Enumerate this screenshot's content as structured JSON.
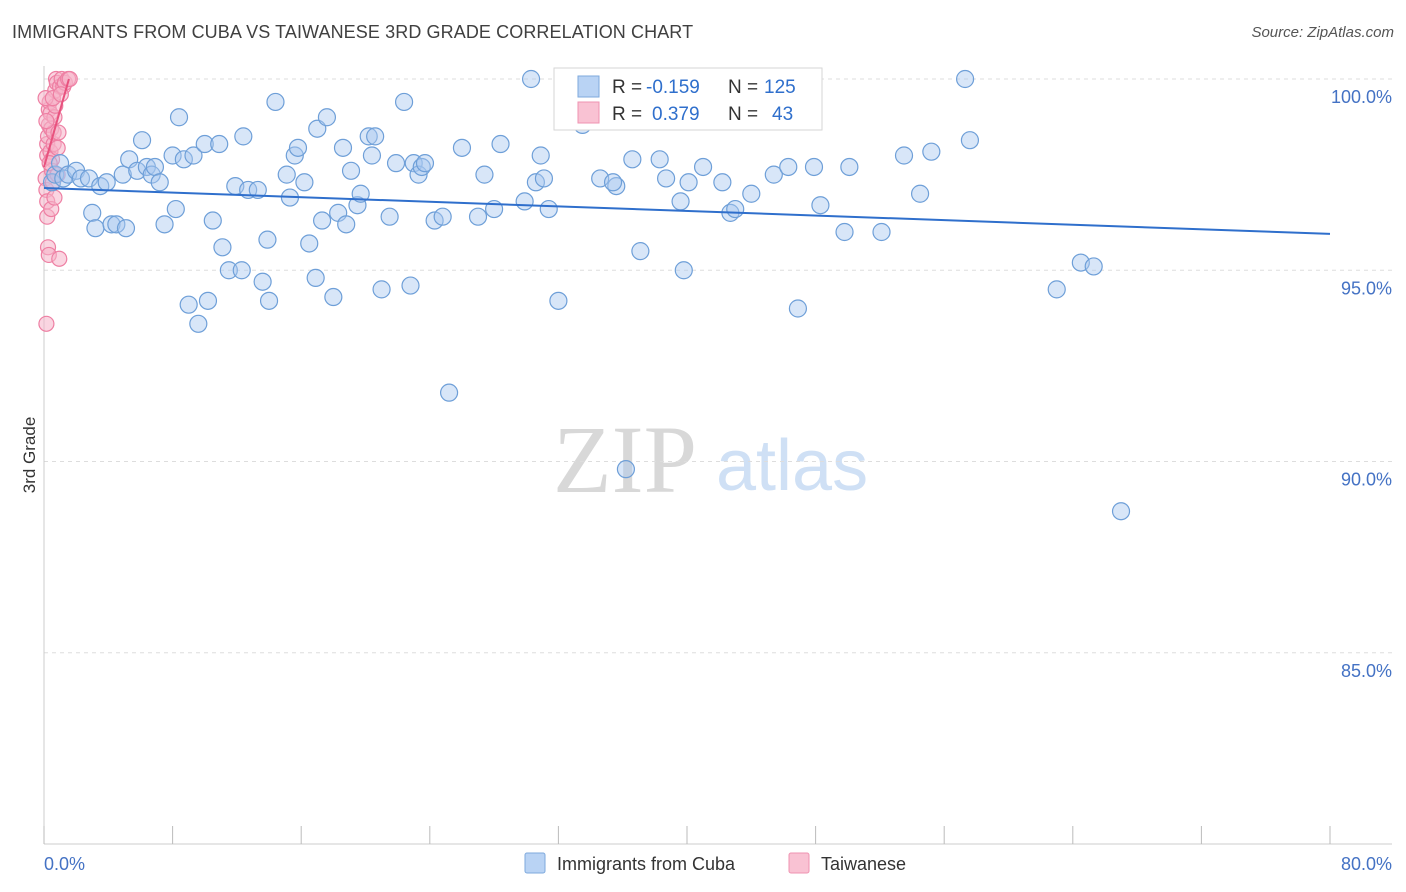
{
  "title": "IMMIGRANTS FROM CUBA VS TAIWANESE 3RD GRADE CORRELATION CHART",
  "source": "Source: ZipAtlas.com",
  "watermark": {
    "zip": "ZIP",
    "atlas": "atlas"
  },
  "colors": {
    "cuba_fill": "#a8c8f0",
    "cuba_stroke": "#6e9fd8",
    "cuba_line": "#2f6fcc",
    "taiwan_fill": "#f6b3c8",
    "taiwan_stroke": "#ee7fa3",
    "taiwan_line": "#e8527e",
    "tick_text": "#4472c4",
    "grid": "#dddddd"
  },
  "legend_box": {
    "rows": [
      {
        "r_label": "R = ",
        "r_value": "-0.159",
        "n_label": "N = ",
        "n_value": "125"
      },
      {
        "r_label": "R = ",
        "r_value": "0.379",
        "n_label": "N = ",
        "n_value": "43"
      }
    ]
  },
  "chart_data": {
    "type": "scatter",
    "title": "IMMIGRANTS FROM CUBA VS TAIWANESE 3RD GRADE CORRELATION CHART",
    "xlabel": "",
    "ylabel": "3rd Grade",
    "xlim": [
      0,
      80
    ],
    "ylim": [
      80.5,
      100.8
    ],
    "x_tick_labels": [
      "0.0%",
      "80.0%"
    ],
    "y_ticks": [
      100,
      95,
      90,
      85
    ],
    "y_tick_labels": [
      "100.0%",
      "95.0%",
      "90.0%",
      "85.0%"
    ],
    "grid": true,
    "legend_position": "bottom-center",
    "series": [
      {
        "name": "Immigrants from Cuba",
        "R": -0.159,
        "N": 125,
        "trend": {
          "x0": 0.0,
          "y0": 97.15,
          "x1": 80.0,
          "y1": 95.95
        },
        "points": [
          [
            0.5,
            97.3
          ],
          [
            0.7,
            97.5
          ],
          [
            1.0,
            97.8
          ],
          [
            1.2,
            97.4
          ],
          [
            1.5,
            97.5
          ],
          [
            2.0,
            97.6
          ],
          [
            2.3,
            97.4
          ],
          [
            2.8,
            97.4
          ],
          [
            3.0,
            96.5
          ],
          [
            3.2,
            96.1
          ],
          [
            3.5,
            97.2
          ],
          [
            3.9,
            97.3
          ],
          [
            4.2,
            96.2
          ],
          [
            4.5,
            96.2
          ],
          [
            4.9,
            97.5
          ],
          [
            5.1,
            96.1
          ],
          [
            5.3,
            97.9
          ],
          [
            5.8,
            97.6
          ],
          [
            6.1,
            98.4
          ],
          [
            6.4,
            97.7
          ],
          [
            6.7,
            97.5
          ],
          [
            6.9,
            97.7
          ],
          [
            7.2,
            97.3
          ],
          [
            7.5,
            96.2
          ],
          [
            8.0,
            98.0
          ],
          [
            8.2,
            96.6
          ],
          [
            8.4,
            99.0
          ],
          [
            8.7,
            97.9
          ],
          [
            9.0,
            94.1
          ],
          [
            9.3,
            98.0
          ],
          [
            9.6,
            93.6
          ],
          [
            10.0,
            98.3
          ],
          [
            10.2,
            94.2
          ],
          [
            10.5,
            96.3
          ],
          [
            10.9,
            98.3
          ],
          [
            11.1,
            95.6
          ],
          [
            11.5,
            95.0
          ],
          [
            11.9,
            97.2
          ],
          [
            12.3,
            95.0
          ],
          [
            12.4,
            98.5
          ],
          [
            12.7,
            97.1
          ],
          [
            13.3,
            97.1
          ],
          [
            13.6,
            94.7
          ],
          [
            13.9,
            95.8
          ],
          [
            14.0,
            94.2
          ],
          [
            14.4,
            99.4
          ],
          [
            15.1,
            97.5
          ],
          [
            15.3,
            96.9
          ],
          [
            15.6,
            98.0
          ],
          [
            15.8,
            98.2
          ],
          [
            16.2,
            97.3
          ],
          [
            16.5,
            95.7
          ],
          [
            16.9,
            94.8
          ],
          [
            17.0,
            98.7
          ],
          [
            17.3,
            96.3
          ],
          [
            17.6,
            99.0
          ],
          [
            18.0,
            94.3
          ],
          [
            18.3,
            96.5
          ],
          [
            18.6,
            98.2
          ],
          [
            18.8,
            96.2
          ],
          [
            19.1,
            97.6
          ],
          [
            19.5,
            96.7
          ],
          [
            19.7,
            97.0
          ],
          [
            20.2,
            98.5
          ],
          [
            20.4,
            98.0
          ],
          [
            20.6,
            98.5
          ],
          [
            21.0,
            94.5
          ],
          [
            21.5,
            96.4
          ],
          [
            21.9,
            97.8
          ],
          [
            22.4,
            99.4
          ],
          [
            22.8,
            94.6
          ],
          [
            23.0,
            97.8
          ],
          [
            23.3,
            97.5
          ],
          [
            23.5,
            97.7
          ],
          [
            23.7,
            97.8
          ],
          [
            24.3,
            96.3
          ],
          [
            24.8,
            96.4
          ],
          [
            25.2,
            91.8
          ],
          [
            26.0,
            98.2
          ],
          [
            27.0,
            96.4
          ],
          [
            27.4,
            97.5
          ],
          [
            28.0,
            96.6
          ],
          [
            28.4,
            98.3
          ],
          [
            29.9,
            96.8
          ],
          [
            30.3,
            100.0
          ],
          [
            30.6,
            97.3
          ],
          [
            30.9,
            98.0
          ],
          [
            31.1,
            97.4
          ],
          [
            31.4,
            96.6
          ],
          [
            32.0,
            94.2
          ],
          [
            33.5,
            98.8
          ],
          [
            34.6,
            97.4
          ],
          [
            35.6,
            97.2
          ],
          [
            35.4,
            97.3
          ],
          [
            36.2,
            89.8
          ],
          [
            36.6,
            97.9
          ],
          [
            37.1,
            95.5
          ],
          [
            38.3,
            97.9
          ],
          [
            38.7,
            97.4
          ],
          [
            39.6,
            96.8
          ],
          [
            39.8,
            95.0
          ],
          [
            40.1,
            97.3
          ],
          [
            41.0,
            97.7
          ],
          [
            42.2,
            97.3
          ],
          [
            42.7,
            96.5
          ],
          [
            43.0,
            96.6
          ],
          [
            44.0,
            97.0
          ],
          [
            45.4,
            97.5
          ],
          [
            46.3,
            97.7
          ],
          [
            46.9,
            94.0
          ],
          [
            47.9,
            97.7
          ],
          [
            48.3,
            96.7
          ],
          [
            49.8,
            96.0
          ],
          [
            50.1,
            97.7
          ],
          [
            52.1,
            96.0
          ],
          [
            53.5,
            98.0
          ],
          [
            54.5,
            97.0
          ],
          [
            55.2,
            98.1
          ],
          [
            57.3,
            100.0
          ],
          [
            57.6,
            98.4
          ],
          [
            63.0,
            94.5
          ],
          [
            64.5,
            95.2
          ],
          [
            65.3,
            95.1
          ],
          [
            67.0,
            88.7
          ]
        ]
      },
      {
        "name": "Taiwanese",
        "R": 0.379,
        "N": 43,
        "trend": {
          "x0": 0.0,
          "y0": 97.7,
          "x1": 1.55,
          "y1": 100.0
        },
        "points": [
          [
            0.1,
            97.4
          ],
          [
            0.15,
            97.1
          ],
          [
            0.2,
            96.8
          ],
          [
            0.2,
            96.4
          ],
          [
            0.25,
            95.6
          ],
          [
            0.3,
            95.4
          ],
          [
            0.15,
            93.6
          ],
          [
            0.2,
            98.0
          ],
          [
            0.2,
            98.3
          ],
          [
            0.25,
            98.5
          ],
          [
            0.3,
            98.8
          ],
          [
            0.3,
            99.2
          ],
          [
            0.35,
            99.4
          ],
          [
            0.4,
            99.1
          ],
          [
            0.45,
            98.7
          ],
          [
            0.4,
            98.1
          ],
          [
            0.5,
            97.9
          ],
          [
            0.5,
            97.6
          ],
          [
            0.55,
            97.3
          ],
          [
            0.6,
            98.3
          ],
          [
            0.6,
            98.6
          ],
          [
            0.65,
            99.0
          ],
          [
            0.7,
            99.3
          ],
          [
            0.7,
            99.7
          ],
          [
            0.75,
            100.0
          ],
          [
            0.8,
            99.9
          ],
          [
            0.85,
            98.2
          ],
          [
            0.9,
            98.6
          ],
          [
            0.95,
            95.3
          ],
          [
            1.0,
            99.8
          ],
          [
            1.1,
            100.0
          ],
          [
            1.2,
            99.8
          ],
          [
            1.3,
            99.9
          ],
          [
            1.5,
            100.0
          ],
          [
            1.6,
            100.0
          ],
          [
            0.1,
            99.5
          ],
          [
            0.15,
            98.9
          ],
          [
            0.35,
            97.8
          ],
          [
            0.45,
            96.6
          ],
          [
            0.55,
            99.5
          ],
          [
            0.65,
            96.9
          ],
          [
            0.85,
            97.5
          ],
          [
            1.05,
            99.6
          ]
        ]
      }
    ]
  }
}
